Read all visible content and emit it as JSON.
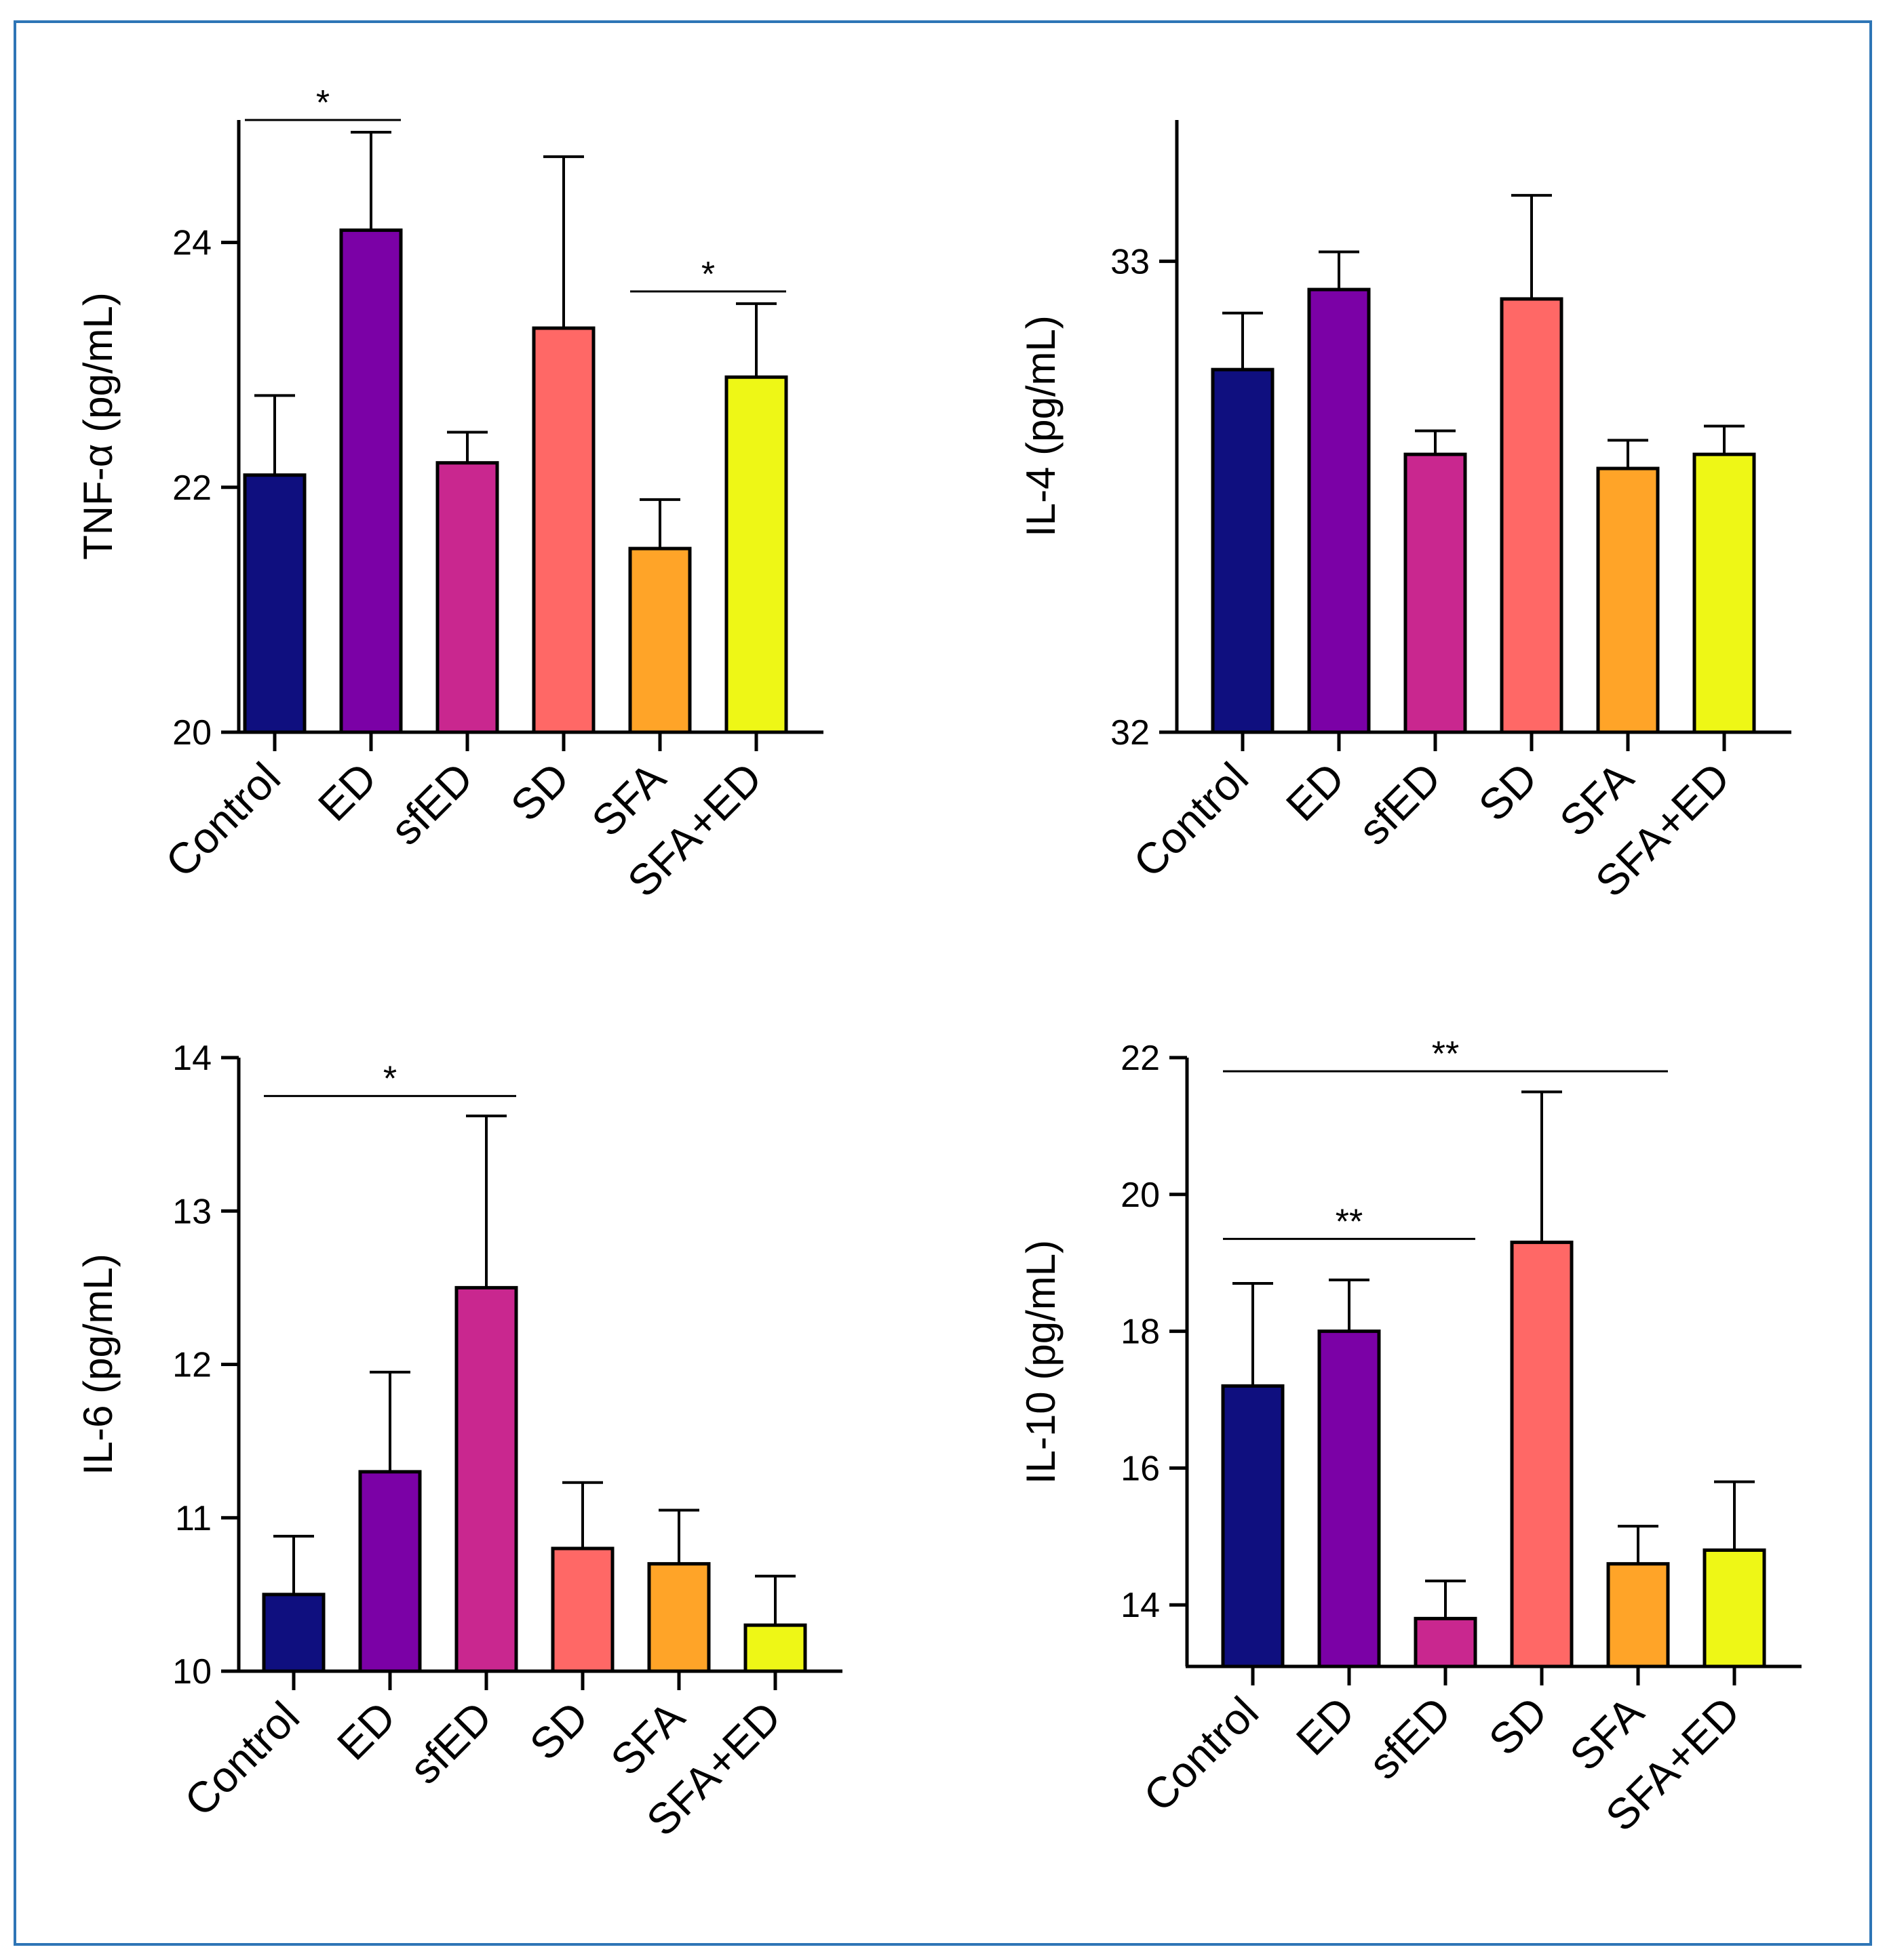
{
  "colors": {
    "frame": "#2E75B6",
    "series": [
      "#0F0F7F",
      "#7B01A6",
      "#C9278F",
      "#FF6866",
      "#FFA428",
      "#EEF716"
    ]
  },
  "chart_data": [
    {
      "type": "bar",
      "ylabel": "TNF-α (pg/mL)",
      "categories": [
        "Control",
        "ED",
        "sfED",
        "SD",
        "SFA",
        "SFA+ED"
      ],
      "values": [
        22.1,
        24.1,
        22.2,
        23.3,
        21.5,
        22.9
      ],
      "errors": [
        0.65,
        0.8,
        0.25,
        1.4,
        0.4,
        0.6
      ],
      "ylim": [
        20,
        25
      ],
      "yticks": [
        20,
        22,
        24
      ],
      "tick_labels": [
        "20",
        "22",
        "24"
      ],
      "significance": [
        {
          "from": 0,
          "to": 1,
          "label": "*",
          "y": 25.0
        },
        {
          "from": 4,
          "to": 5,
          "label": "*",
          "y": 23.6
        }
      ]
    },
    {
      "type": "bar",
      "ylabel": "IL-4 (pg/mL)",
      "categories": [
        "Control",
        "ED",
        "sfED",
        "SD",
        "SFA",
        "SFA+ED"
      ],
      "values": [
        32.77,
        32.94,
        32.59,
        32.92,
        32.56,
        32.59
      ],
      "errors": [
        0.12,
        0.08,
        0.05,
        0.22,
        0.06,
        0.06
      ],
      "ylim": [
        32,
        33.3
      ],
      "yticks": [
        32,
        33
      ],
      "tick_labels": [
        "32",
        "33"
      ],
      "significance": []
    },
    {
      "type": "bar",
      "ylabel": "IL-6 (pg/mL)",
      "categories": [
        "Control",
        "ED",
        "sfED",
        "SD",
        "SFA",
        "SFA+ED"
      ],
      "values": [
        10.5,
        11.3,
        12.5,
        10.8,
        10.7,
        10.3
      ],
      "errors": [
        0.38,
        0.65,
        1.12,
        0.43,
        0.35,
        0.32
      ],
      "ylim": [
        10,
        14
      ],
      "yticks": [
        10,
        11,
        12,
        13,
        14
      ],
      "tick_labels": [
        "10",
        "11",
        "12",
        "13",
        "14"
      ],
      "significance": [
        {
          "from": 0,
          "to": 2,
          "label": "*",
          "y": 13.75
        }
      ]
    },
    {
      "type": "bar",
      "ylabel": "IL-10 (pg/mL)",
      "categories": [
        "Control",
        "ED",
        "sfED",
        "SD",
        "SFA",
        "SFA+ED"
      ],
      "values": [
        17.2,
        18.0,
        13.8,
        19.3,
        14.6,
        14.8
      ],
      "errors": [
        1.5,
        0.75,
        0.55,
        2.2,
        0.55,
        1.0
      ],
      "ylim": [
        13.1,
        22
      ],
      "yticks": [
        14,
        16,
        18,
        20,
        22
      ],
      "tick_labels": [
        "14",
        "16",
        "18",
        "20",
        "22"
      ],
      "significance": [
        {
          "from": 0,
          "to": 4,
          "label": "**",
          "y": 21.8
        },
        {
          "from": 0,
          "to": 2,
          "label": "**",
          "y": 19.35
        }
      ]
    }
  ]
}
